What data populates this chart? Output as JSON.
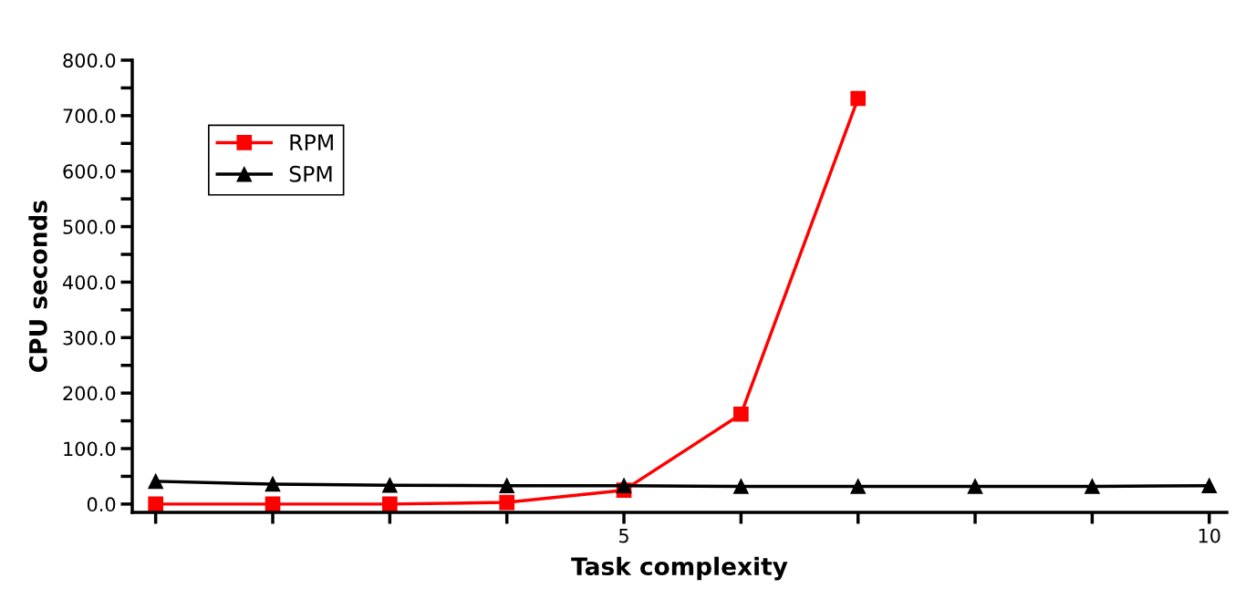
{
  "chart_data": {
    "type": "line",
    "xlabel": "Task complexity",
    "ylabel": "CPU seconds",
    "x": [
      1,
      2,
      3,
      4,
      5,
      6,
      7,
      8,
      9,
      10
    ],
    "series": [
      {
        "name": "RPM",
        "color": "#ff0000",
        "marker": "square",
        "values": [
          0,
          0,
          0,
          3,
          25,
          162,
          731,
          null,
          null,
          null
        ]
      },
      {
        "name": "SPM",
        "color": "#000000",
        "marker": "triangle",
        "values": [
          41,
          36,
          34,
          33,
          33,
          32,
          32,
          32,
          32,
          33
        ]
      }
    ],
    "xlim": [
      0.8,
      10.15
    ],
    "xticks": [
      {
        "value": 1,
        "label": null
      },
      {
        "value": 2,
        "label": null
      },
      {
        "value": 3,
        "label": null
      },
      {
        "value": 4,
        "label": null
      },
      5,
      {
        "value": 6,
        "label": null
      },
      {
        "value": 7,
        "label": null
      },
      {
        "value": 8,
        "label": null
      },
      {
        "value": 9,
        "label": null
      },
      10
    ],
    "ylim": [
      -15,
      800
    ],
    "yticks": [
      {
        "value": 0,
        "label": "0.0"
      },
      {
        "value": 100,
        "label": "100.0"
      },
      {
        "value": 200,
        "label": "200.0"
      },
      {
        "value": 300,
        "label": "300.0"
      },
      {
        "value": 400,
        "label": "400.0"
      },
      {
        "value": 500,
        "label": "500.0"
      },
      {
        "value": 600,
        "label": "600.0"
      },
      {
        "value": 700,
        "label": "700.0"
      },
      {
        "value": 800,
        "label": "800.0"
      }
    ],
    "grid": false,
    "legend": "top left",
    "line_style": "solid"
  }
}
